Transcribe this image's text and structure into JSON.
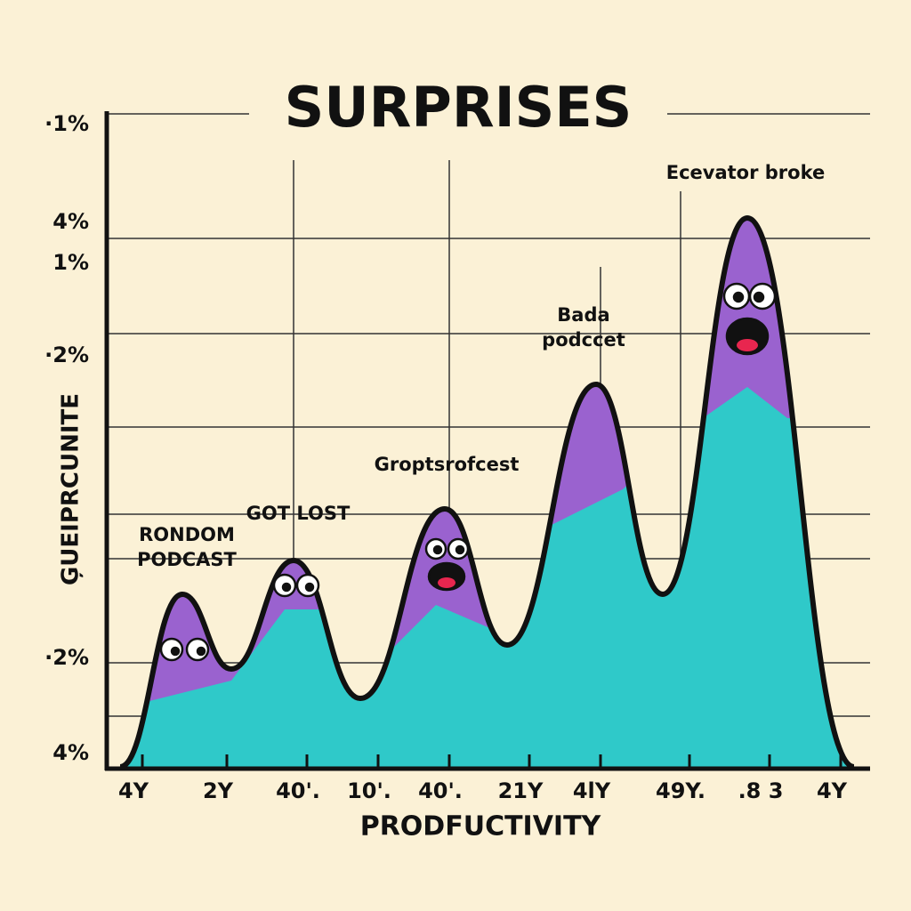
{
  "title": "SURPRISES",
  "y_axis_label": "ĢUEIPRCUNITE",
  "x_axis_label": "PRODFUCTIVITY",
  "y_labels": [
    "·1%",
    "4%",
    "1%",
    "·2%",
    "·2%",
    "4%"
  ],
  "x_labels": [
    "4Y",
    "2Y",
    "40'.",
    "10'.",
    "40'.",
    "21Y",
    "4lY",
    "49Y.",
    ".8 3",
    "4Y"
  ],
  "annotations": [
    [
      "RONDOM",
      "PODCAST"
    ],
    [
      "GOT LOST"
    ],
    [
      "Groptsrofcest"
    ],
    [
      "Bada",
      "podccet"
    ],
    [
      "Ecevator broke"
    ]
  ]
}
